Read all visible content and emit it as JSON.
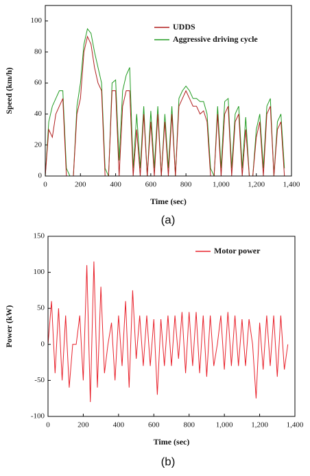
{
  "chart_data": [
    {
      "type": "line",
      "caption": "(a)",
      "xlabel": "Time (sec)",
      "ylabel": "Speed (km/h)",
      "x": [
        0,
        20,
        40,
        60,
        80,
        100,
        120,
        140,
        160,
        180,
        200,
        220,
        240,
        260,
        280,
        300,
        320,
        340,
        360,
        380,
        400,
        420,
        440,
        460,
        480,
        500,
        520,
        540,
        560,
        580,
        600,
        620,
        640,
        660,
        680,
        700,
        720,
        740,
        760,
        780,
        800,
        820,
        840,
        860,
        880,
        900,
        920,
        940,
        960,
        980,
        1000,
        1020,
        1040,
        1060,
        1080,
        1100,
        1120,
        1140,
        1160,
        1180,
        1200,
        1220,
        1240,
        1260,
        1280,
        1300,
        1320,
        1340,
        1360
      ],
      "series": [
        {
          "name": "UDDS",
          "color": "#b01c1c",
          "values": [
            0,
            30,
            25,
            40,
            45,
            50,
            0,
            0,
            0,
            40,
            50,
            80,
            90,
            85,
            70,
            60,
            55,
            0,
            0,
            55,
            55,
            0,
            45,
            55,
            55,
            0,
            30,
            0,
            40,
            0,
            35,
            0,
            40,
            0,
            35,
            0,
            40,
            0,
            45,
            50,
            55,
            50,
            45,
            45,
            40,
            42,
            35,
            0,
            0,
            40,
            0,
            40,
            45,
            0,
            35,
            40,
            0,
            30,
            0,
            0,
            25,
            35,
            0,
            40,
            45,
            0,
            30,
            35,
            0
          ]
        },
        {
          "name": "Aggressive driving cycle",
          "color": "#1f9a1f",
          "values": [
            0,
            35,
            45,
            50,
            55,
            55,
            5,
            0,
            0,
            45,
            60,
            85,
            95,
            92,
            80,
            70,
            60,
            5,
            0,
            60,
            62,
            10,
            55,
            65,
            70,
            5,
            40,
            5,
            45,
            0,
            42,
            5,
            45,
            0,
            40,
            5,
            45,
            0,
            50,
            55,
            58,
            55,
            50,
            50,
            48,
            48,
            40,
            5,
            0,
            45,
            5,
            48,
            50,
            5,
            40,
            45,
            5,
            38,
            0,
            0,
            30,
            40,
            5,
            45,
            50,
            0,
            35,
            40,
            5
          ]
        }
      ],
      "xlim": [
        0,
        1400
      ],
      "xticks": [
        0,
        200,
        400,
        600,
        800,
        {
          "value": 1000,
          "label": "1,000"
        },
        {
          "value": 1200,
          "label": "1,200"
        },
        {
          "value": 1400,
          "label": "1,400"
        }
      ],
      "ylim": [
        0,
        110
      ],
      "yticks": [
        0,
        20,
        40,
        60,
        80,
        100
      ],
      "legend": "upper right"
    },
    {
      "type": "line",
      "caption": "(b)",
      "xlabel": "Time (sec)",
      "ylabel": "Power (kW)",
      "x": [
        0,
        20,
        40,
        60,
        80,
        100,
        120,
        140,
        160,
        180,
        200,
        220,
        240,
        260,
        280,
        300,
        320,
        340,
        360,
        380,
        400,
        420,
        440,
        460,
        480,
        500,
        520,
        540,
        560,
        580,
        600,
        620,
        640,
        660,
        680,
        700,
        720,
        740,
        760,
        780,
        800,
        820,
        840,
        860,
        880,
        900,
        920,
        940,
        960,
        980,
        1000,
        1020,
        1040,
        1060,
        1080,
        1100,
        1120,
        1140,
        1160,
        1180,
        1200,
        1220,
        1240,
        1260,
        1280,
        1300,
        1320,
        1340,
        1360
      ],
      "series": [
        {
          "name": "Motor power",
          "color": "#e8202a",
          "values": [
            0,
            60,
            -40,
            50,
            -50,
            40,
            -60,
            0,
            0,
            40,
            -50,
            110,
            -80,
            115,
            -60,
            80,
            -40,
            0,
            30,
            -50,
            40,
            -30,
            60,
            -60,
            75,
            -20,
            40,
            -30,
            40,
            -30,
            35,
            -70,
            35,
            -30,
            40,
            -30,
            40,
            -20,
            45,
            -40,
            45,
            -30,
            45,
            -40,
            40,
            -45,
            40,
            -30,
            0,
            40,
            -35,
            45,
            -30,
            40,
            -30,
            35,
            -30,
            35,
            0,
            -75,
            30,
            -35,
            40,
            -30,
            40,
            -45,
            40,
            -35,
            0
          ]
        }
      ],
      "xlim": [
        0,
        1400
      ],
      "xticks": [
        0,
        200,
        400,
        600,
        800,
        {
          "value": 1000,
          "label": "1,000"
        },
        {
          "value": 1200,
          "label": "1,200"
        },
        {
          "value": 1400,
          "label": "1,400"
        }
      ],
      "ylim": [
        -100,
        150
      ],
      "yticks": [
        -100,
        -50,
        0,
        50,
        100,
        150
      ],
      "legend": "upper right"
    }
  ]
}
